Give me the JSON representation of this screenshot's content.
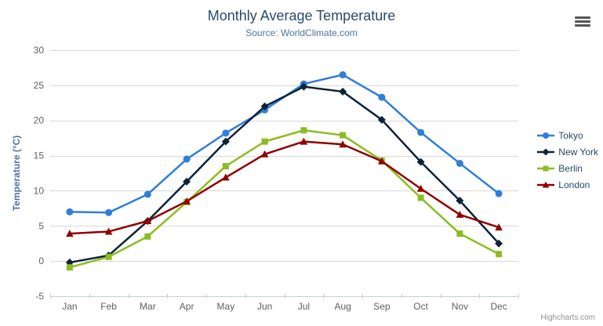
{
  "chart": {
    "title": "Monthly Average Temperature",
    "subtitle": "Source: WorldClimate.com",
    "credits": "Highcharts.com",
    "export_menu_icon": "hamburger-icon"
  },
  "chart_data": {
    "type": "line",
    "title": "Monthly Average Temperature",
    "subtitle": "Source: WorldClimate.com",
    "categories": [
      "Jan",
      "Feb",
      "Mar",
      "Apr",
      "May",
      "Jun",
      "Jul",
      "Aug",
      "Sep",
      "Oct",
      "Nov",
      "Dec"
    ],
    "series": [
      {
        "name": "Tokyo",
        "color": "#2f7ed8",
        "marker": "circle",
        "values": [
          7.0,
          6.9,
          9.5,
          14.5,
          18.2,
          21.5,
          25.2,
          26.5,
          23.3,
          18.3,
          13.9,
          9.6
        ]
      },
      {
        "name": "New York",
        "color": "#0d233a",
        "marker": "diamond",
        "values": [
          -0.2,
          0.8,
          5.7,
          11.3,
          17.0,
          22.0,
          24.8,
          24.1,
          20.1,
          14.1,
          8.6,
          2.5
        ]
      },
      {
        "name": "Berlin",
        "color": "#8bbc21",
        "marker": "square",
        "values": [
          -0.9,
          0.6,
          3.5,
          8.4,
          13.5,
          17.0,
          18.6,
          17.9,
          14.3,
          9.0,
          3.9,
          1.0
        ]
      },
      {
        "name": "London",
        "color": "#910000",
        "marker": "triangle",
        "values": [
          3.9,
          4.2,
          5.7,
          8.5,
          11.9,
          15.2,
          17.0,
          16.6,
          14.2,
          10.3,
          6.6,
          4.8
        ]
      }
    ],
    "xlabel": "",
    "ylabel": "Temperature (°C)",
    "ylim": [
      -5,
      30
    ],
    "ytick_step": 5,
    "grid": true,
    "legend_position": "right"
  },
  "colors": {
    "grid": "#d8d8d8",
    "axis_line": "#c0d0e0",
    "tick_label": "#606060",
    "axis_title": "#4d759e",
    "title": "#274b6d",
    "subtitle": "#4d759e",
    "legend_text": "#274b6d",
    "credits": "#909090"
  }
}
